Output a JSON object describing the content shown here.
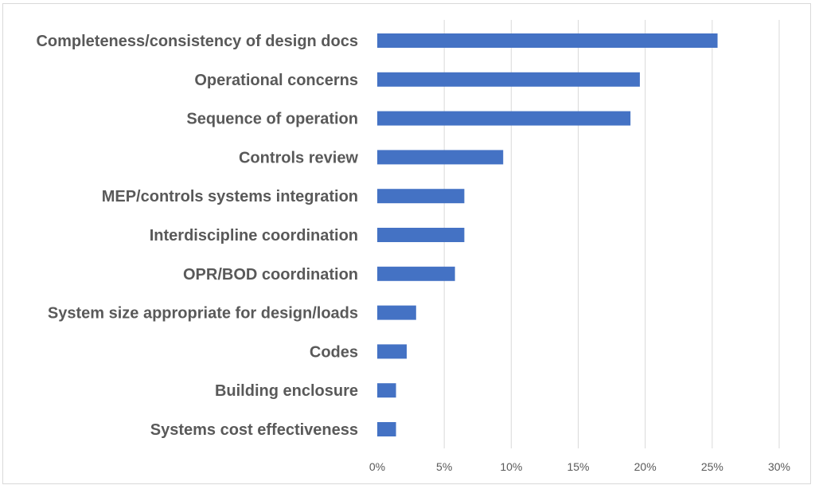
{
  "chart_data": {
    "type": "bar",
    "orientation": "horizontal",
    "categories": [
      "Completeness/consistency of design docs",
      "Operational concerns",
      "Sequence of operation",
      "Controls review",
      "MEP/controls systems integration",
      "Interdiscipline coordination",
      "OPR/BOD coordination",
      "System size appropriate for design/loads",
      "Codes",
      "Building enclosure",
      "Systems cost effectiveness"
    ],
    "values": [
      25.4,
      19.6,
      18.9,
      9.4,
      6.5,
      6.5,
      5.8,
      2.9,
      2.2,
      1.4,
      1.4
    ],
    "xlim": [
      0,
      30
    ],
    "x_ticks": [
      0,
      5,
      10,
      15,
      20,
      25,
      30
    ],
    "x_tick_labels": [
      "0%",
      "5%",
      "10%",
      "15%",
      "20%",
      "25%",
      "30%"
    ],
    "title": "",
    "xlabel": "",
    "ylabel": "",
    "grid": "vertical",
    "legend": "none",
    "bar_color": "#4472C4",
    "grid_color": "#d9d9d9",
    "text_color": "#595959"
  }
}
